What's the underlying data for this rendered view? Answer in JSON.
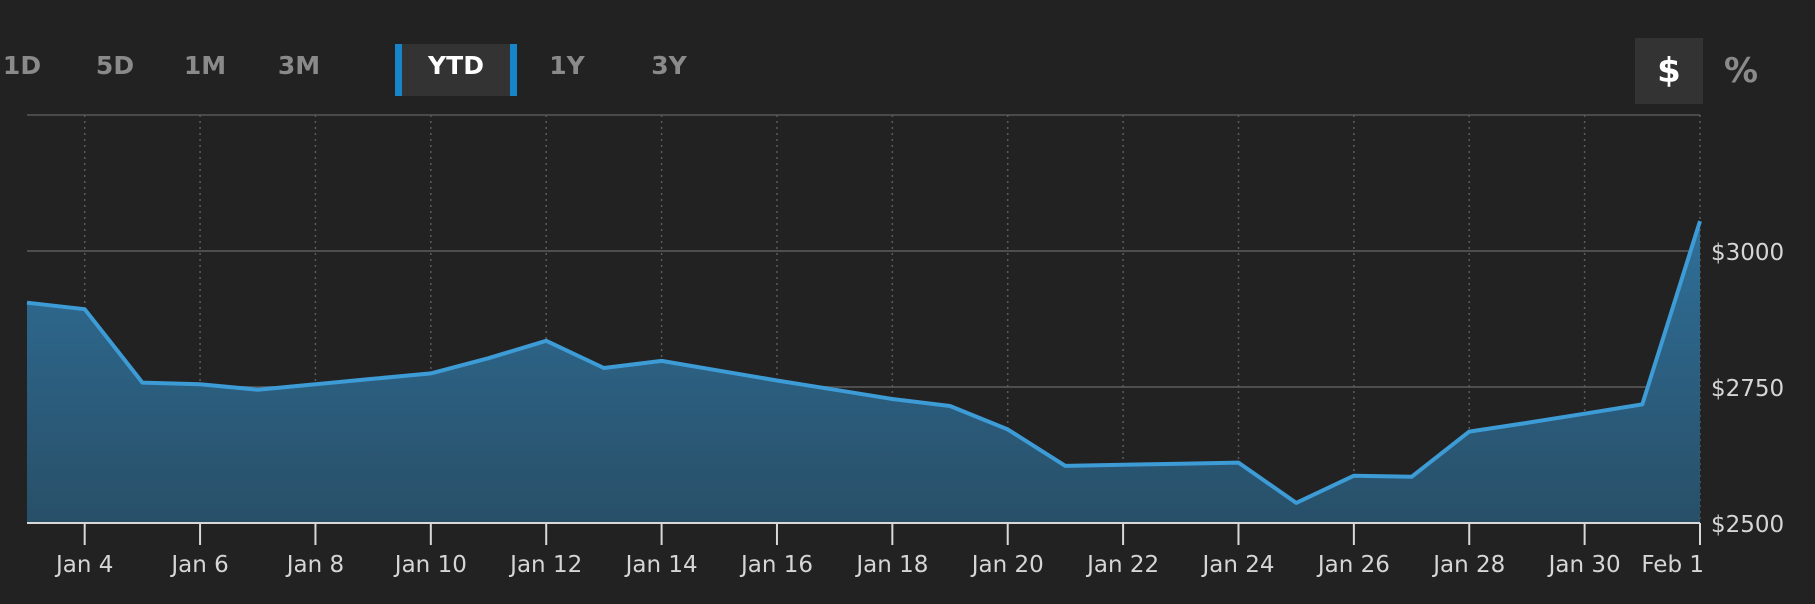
{
  "range_tabs": [
    {
      "label": "1D",
      "active": false
    },
    {
      "label": "5D",
      "active": false
    },
    {
      "label": "1M",
      "active": false
    },
    {
      "label": "3M",
      "active": false
    },
    {
      "label": "YTD",
      "active": true
    },
    {
      "label": "1Y",
      "active": false
    },
    {
      "label": "3Y",
      "active": false
    }
  ],
  "unit_toggle": {
    "dollar": {
      "label": "$",
      "active": true
    },
    "percent": {
      "label": "%",
      "active": false
    }
  },
  "colors": {
    "background": "#222222",
    "line": "#3d9bd6",
    "fill_top": "#2f6f98",
    "fill_bottom": "#284f68",
    "grid": "#4a4a4a",
    "text": "#d6d6d6",
    "accent": "#1686c9"
  },
  "chart_data": {
    "type": "area",
    "title": "",
    "xlabel": "",
    "ylabel": "",
    "x": [
      "Jan 3",
      "Jan 4",
      "Jan 5",
      "Jan 6",
      "Jan 7",
      "Jan 8",
      "Jan 9",
      "Jan 10",
      "Jan 11",
      "Jan 12",
      "Jan 13",
      "Jan 14",
      "Jan 15",
      "Jan 16",
      "Jan 17",
      "Jan 18",
      "Jan 19",
      "Jan 20",
      "Jan 21",
      "Jan 22",
      "Jan 23",
      "Jan 24",
      "Jan 25",
      "Jan 26",
      "Jan 27",
      "Jan 28",
      "Jan 29",
      "Jan 30",
      "Jan 31",
      "Feb 1"
    ],
    "values": [
      2905,
      2893,
      2758,
      2755,
      2745,
      2755,
      2765,
      2775,
      2803,
      2835,
      2785,
      2798,
      2780,
      2762,
      2745,
      2728,
      2715,
      2672,
      2605,
      2607,
      2609,
      2611,
      2537,
      2587,
      2585,
      2668,
      2684,
      2701,
      2718,
      3055
    ],
    "xticks": [
      "Jan 4",
      "Jan 6",
      "Jan 8",
      "Jan 10",
      "Jan 12",
      "Jan 14",
      "Jan 16",
      "Jan 18",
      "Jan 20",
      "Jan 22",
      "Jan 24",
      "Jan 26",
      "Jan 28",
      "Jan 30",
      "Feb 1"
    ],
    "yticks": [
      "$2500",
      "$2750",
      "$3000"
    ],
    "ytick_values": [
      2500,
      2750,
      3000
    ],
    "ylim": [
      2500,
      3250
    ],
    "grid": true,
    "y_axis_position": "right"
  }
}
